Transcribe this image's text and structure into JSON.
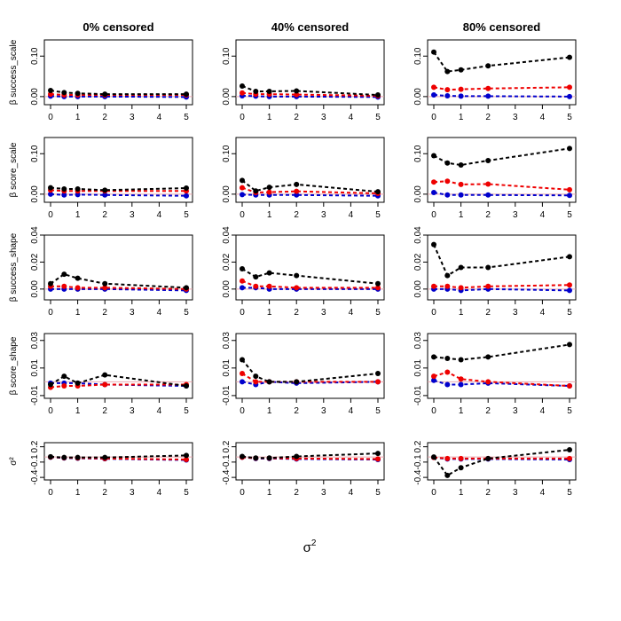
{
  "figure": {
    "x_axis_title": "σ",
    "x_axis_title_superscript": "2"
  },
  "chart_data": {
    "type": "line",
    "x": [
      0,
      0.5,
      1,
      2,
      5
    ],
    "xticks": [
      0,
      1,
      2,
      3,
      4,
      5
    ],
    "xlim": [
      0,
      5
    ],
    "columns": [
      "0% censored",
      "40% censored",
      "80% censored"
    ],
    "colors": {
      "black": "#000000",
      "red": "#ee0000",
      "blue": "#0000cc",
      "reference": "#e8a0a8"
    },
    "rows": [
      {
        "label": "β success_scale",
        "ylim": [
          -0.02,
          0.14
        ],
        "yticks": [
          0.0,
          0.1
        ],
        "ytick_labels": [
          "0.00",
          "0.10"
        ],
        "panels": [
          {
            "series": [
              {
                "color": "black",
                "values": [
                  0.015,
                  0.01,
                  0.008,
                  0.006,
                  0.006
                ]
              },
              {
                "color": "red",
                "values": [
                  0.006,
                  0.004,
                  0.004,
                  0.004,
                  0.004
                ]
              },
              {
                "color": "blue",
                "values": [
                  0.001,
                  0.0,
                  0.0,
                  0.0,
                  -0.001
                ]
              }
            ]
          },
          {
            "series": [
              {
                "color": "black",
                "values": [
                  0.026,
                  0.013,
                  0.013,
                  0.014,
                  0.004
                ]
              },
              {
                "color": "red",
                "values": [
                  0.009,
                  0.006,
                  0.006,
                  0.005,
                  0.002
                ]
              },
              {
                "color": "blue",
                "values": [
                  0.002,
                  0.001,
                  0.0,
                  0.0,
                  -0.001
                ]
              }
            ]
          },
          {
            "series": [
              {
                "color": "black",
                "values": [
                  0.11,
                  0.062,
                  0.066,
                  0.076,
                  0.097
                ]
              },
              {
                "color": "red",
                "values": [
                  0.023,
                  0.017,
                  0.018,
                  0.02,
                  0.023
                ]
              },
              {
                "color": "blue",
                "values": [
                  0.004,
                  0.002,
                  0.001,
                  0.001,
                  0.0
                ]
              }
            ]
          }
        ]
      },
      {
        "label": "β score_scale",
        "ylim": [
          -0.02,
          0.14
        ],
        "yticks": [
          0.0,
          0.1
        ],
        "ytick_labels": [
          "0.00",
          "0.10"
        ],
        "panels": [
          {
            "series": [
              {
                "color": "black",
                "values": [
                  0.016,
                  0.013,
                  0.013,
                  0.01,
                  0.015
                ]
              },
              {
                "color": "red",
                "values": [
                  0.01,
                  0.008,
                  0.008,
                  0.008,
                  0.008
                ]
              },
              {
                "color": "blue",
                "values": [
                  0.0,
                  -0.002,
                  -0.001,
                  -0.002,
                  -0.004
                ]
              }
            ]
          },
          {
            "series": [
              {
                "color": "black",
                "values": [
                  0.034,
                  0.008,
                  0.017,
                  0.024,
                  0.006
                ]
              },
              {
                "color": "red",
                "values": [
                  0.016,
                  0.004,
                  0.005,
                  0.007,
                  0.002
                ]
              },
              {
                "color": "blue",
                "values": [
                  -0.001,
                  -0.002,
                  -0.002,
                  -0.002,
                  -0.004
                ]
              }
            ]
          },
          {
            "series": [
              {
                "color": "black",
                "values": [
                  0.095,
                  0.077,
                  0.072,
                  0.083,
                  0.113
                ]
              },
              {
                "color": "red",
                "values": [
                  0.03,
                  0.032,
                  0.024,
                  0.025,
                  0.011
                ]
              },
              {
                "color": "blue",
                "values": [
                  0.004,
                  -0.002,
                  -0.002,
                  -0.002,
                  -0.003
                ]
              }
            ]
          }
        ]
      },
      {
        "label": "β success_shape",
        "ylim": [
          -0.008,
          0.04
        ],
        "yticks": [
          0.0,
          0.02,
          0.04
        ],
        "ytick_labels": [
          "0.00",
          "0.02",
          "0.04"
        ],
        "panels": [
          {
            "series": [
              {
                "color": "black",
                "values": [
                  0.004,
                  0.011,
                  0.008,
                  0.004,
                  0.001
                ]
              },
              {
                "color": "red",
                "values": [
                  0.002,
                  0.002,
                  0.001,
                  0.001,
                  0.0
                ]
              },
              {
                "color": "blue",
                "values": [
                  0.0,
                  0.0,
                  0.0,
                  0.0,
                  -0.001
                ]
              }
            ]
          },
          {
            "series": [
              {
                "color": "black",
                "values": [
                  0.015,
                  0.009,
                  0.012,
                  0.01,
                  0.004
                ]
              },
              {
                "color": "red",
                "values": [
                  0.006,
                  0.002,
                  0.002,
                  0.001,
                  0.001
                ]
              },
              {
                "color": "blue",
                "values": [
                  0.001,
                  0.001,
                  0.0,
                  0.0,
                  0.0
                ]
              }
            ]
          },
          {
            "series": [
              {
                "color": "black",
                "values": [
                  0.033,
                  0.01,
                  0.016,
                  0.016,
                  0.024
                ]
              },
              {
                "color": "red",
                "values": [
                  0.002,
                  0.002,
                  0.001,
                  0.002,
                  0.003
                ]
              },
              {
                "color": "blue",
                "values": [
                  0.0,
                  0.0,
                  -0.001,
                  0.0,
                  -0.001
                ]
              }
            ]
          }
        ]
      },
      {
        "label": "β score_shape",
        "ylim": [
          -0.012,
          0.035
        ],
        "yticks": [
          -0.01,
          0.01,
          0.03
        ],
        "ytick_labels": [
          "-0.01",
          "0.01",
          "0.03"
        ],
        "panels": [
          {
            "series": [
              {
                "color": "black",
                "values": [
                  -0.002,
                  0.004,
                  -0.001,
                  0.005,
                  -0.003
                ]
              },
              {
                "color": "red",
                "values": [
                  -0.004,
                  -0.003,
                  -0.003,
                  -0.002,
                  -0.002
                ]
              },
              {
                "color": "blue",
                "values": [
                  -0.001,
                  -0.001,
                  -0.001,
                  -0.002,
                  -0.003
                ]
              }
            ]
          },
          {
            "series": [
              {
                "color": "black",
                "values": [
                  0.016,
                  0.004,
                  0.0,
                  0.0,
                  0.006
                ]
              },
              {
                "color": "red",
                "values": [
                  0.006,
                  0.0,
                  0.0,
                  0.0,
                  0.0
                ]
              },
              {
                "color": "blue",
                "values": [
                  0.0,
                  -0.002,
                  0.0,
                  -0.001,
                  0.0
                ]
              }
            ]
          },
          {
            "series": [
              {
                "color": "black",
                "values": [
                  0.018,
                  0.017,
                  0.016,
                  0.018,
                  0.027
                ]
              },
              {
                "color": "red",
                "values": [
                  0.004,
                  0.007,
                  0.002,
                  0.0,
                  -0.003
                ]
              },
              {
                "color": "blue",
                "values": [
                  0.001,
                  -0.002,
                  -0.002,
                  -0.001,
                  -0.003
                ]
              }
            ]
          }
        ]
      },
      {
        "label": "σ²",
        "ylim": [
          -0.45,
          0.28
        ],
        "yticks": [
          -0.4,
          -0.1,
          0.2
        ],
        "ytick_labels": [
          "-0.4",
          "-0.1",
          "0.2"
        ],
        "panels": [
          {
            "series": [
              {
                "color": "black",
                "values": [
                  0.005,
                  -0.01,
                  -0.01,
                  -0.01,
                  0.03
                ]
              },
              {
                "color": "red",
                "values": [
                  -0.002,
                  -0.015,
                  -0.02,
                  -0.03,
                  -0.05
                ]
              },
              {
                "color": "blue",
                "values": [
                  -0.005,
                  -0.02,
                  -0.025,
                  -0.035,
                  -0.06
                ]
              }
            ]
          },
          {
            "series": [
              {
                "color": "black",
                "values": [
                  0.01,
                  -0.02,
                  -0.02,
                  0.01,
                  0.07
                ]
              },
              {
                "color": "red",
                "values": [
                  -0.005,
                  -0.025,
                  -0.025,
                  -0.03,
                  -0.04
                ]
              },
              {
                "color": "blue",
                "values": [
                  -0.005,
                  -0.03,
                  -0.03,
                  -0.04,
                  -0.05
                ]
              }
            ]
          },
          {
            "series": [
              {
                "color": "black",
                "values": [
                  0.0,
                  -0.36,
                  -0.21,
                  -0.03,
                  0.14
                ]
              },
              {
                "color": "red",
                "values": [
                  -0.01,
                  -0.03,
                  -0.03,
                  -0.03,
                  -0.03
                ]
              },
              {
                "color": "blue",
                "values": [
                  -0.01,
                  -0.04,
                  -0.04,
                  -0.04,
                  -0.05
                ]
              }
            ]
          }
        ]
      }
    ]
  }
}
